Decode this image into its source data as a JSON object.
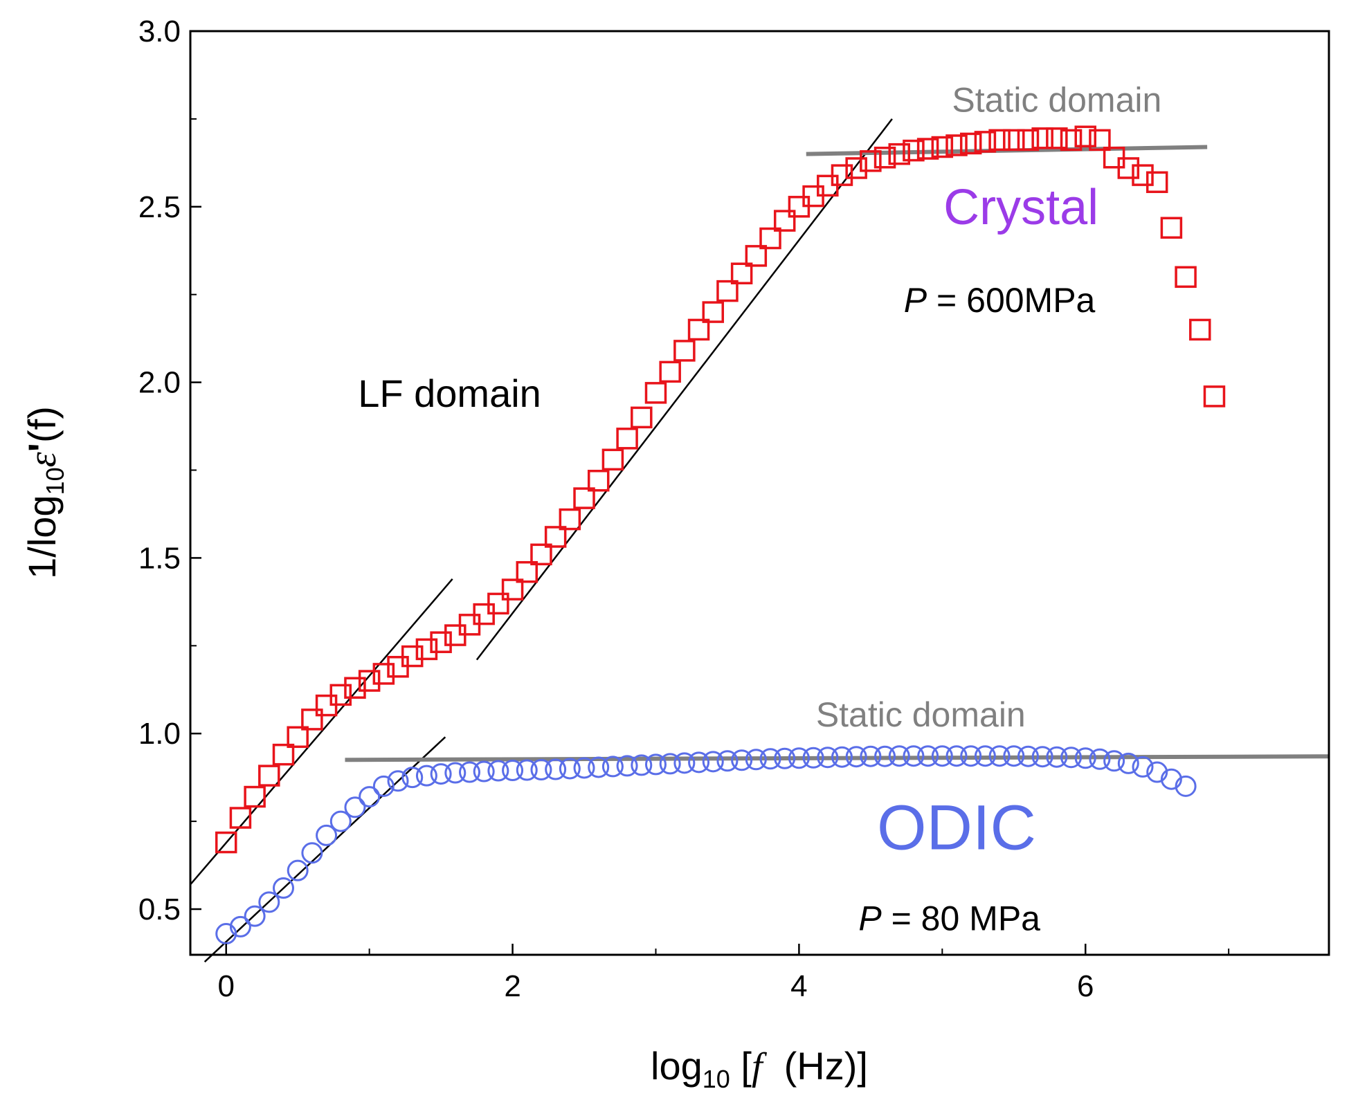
{
  "chart_data": {
    "type": "scatter",
    "xlabel": {
      "prefix": "log",
      "sub": "10",
      "bracket_open": " [",
      "var": "f",
      "unit": "  (Hz)]"
    },
    "ylabel": {
      "prefix": "1/log",
      "sub": "10",
      "var": "ε",
      "prime": "'",
      "arg": "(f)"
    },
    "xlim": [
      -0.25,
      7.7
    ],
    "ylim": [
      0.37,
      3.0
    ],
    "xticks": [
      0,
      2,
      4,
      6
    ],
    "xtick_labels": [
      "0",
      "2",
      "4",
      "6"
    ],
    "yticks": [
      0.5,
      1.0,
      1.5,
      2.0,
      2.5,
      3.0
    ],
    "ytick_labels": [
      "0.5",
      "1.0",
      "1.5",
      "2.0",
      "2.5",
      "3.0"
    ],
    "colors": {
      "crystal": "#e8141b",
      "odic": "#5a6ee8",
      "crystal_label": "#9b3be8",
      "static": "#808080",
      "fit": "#000000"
    },
    "series": [
      {
        "name": "Crystal",
        "marker": "square",
        "points": [
          [
            0.0,
            0.69
          ],
          [
            0.1,
            0.76
          ],
          [
            0.2,
            0.82
          ],
          [
            0.3,
            0.88
          ],
          [
            0.4,
            0.94
          ],
          [
            0.5,
            0.99
          ],
          [
            0.6,
            1.04
          ],
          [
            0.7,
            1.08
          ],
          [
            0.8,
            1.11
          ],
          [
            0.9,
            1.13
          ],
          [
            1.0,
            1.15
          ],
          [
            1.1,
            1.17
          ],
          [
            1.2,
            1.19
          ],
          [
            1.3,
            1.22
          ],
          [
            1.4,
            1.24
          ],
          [
            1.5,
            1.26
          ],
          [
            1.6,
            1.28
          ],
          [
            1.7,
            1.31
          ],
          [
            1.8,
            1.34
          ],
          [
            1.9,
            1.37
          ],
          [
            2.0,
            1.41
          ],
          [
            2.1,
            1.46
          ],
          [
            2.2,
            1.51
          ],
          [
            2.3,
            1.56
          ],
          [
            2.4,
            1.61
          ],
          [
            2.5,
            1.67
          ],
          [
            2.6,
            1.72
          ],
          [
            2.7,
            1.78
          ],
          [
            2.8,
            1.84
          ],
          [
            2.9,
            1.9
          ],
          [
            3.0,
            1.97
          ],
          [
            3.1,
            2.03
          ],
          [
            3.2,
            2.09
          ],
          [
            3.3,
            2.15
          ],
          [
            3.4,
            2.2
          ],
          [
            3.5,
            2.26
          ],
          [
            3.6,
            2.31
          ],
          [
            3.7,
            2.36
          ],
          [
            3.8,
            2.41
          ],
          [
            3.9,
            2.46
          ],
          [
            4.0,
            2.5
          ],
          [
            4.1,
            2.53
          ],
          [
            4.2,
            2.56
          ],
          [
            4.3,
            2.59
          ],
          [
            4.4,
            2.61
          ],
          [
            4.5,
            2.63
          ],
          [
            4.6,
            2.64
          ],
          [
            4.7,
            2.65
          ],
          [
            4.8,
            2.66
          ],
          [
            4.9,
            2.665
          ],
          [
            5.0,
            2.67
          ],
          [
            5.1,
            2.675
          ],
          [
            5.2,
            2.68
          ],
          [
            5.3,
            2.685
          ],
          [
            5.4,
            2.69
          ],
          [
            5.5,
            2.69
          ],
          [
            5.6,
            2.69
          ],
          [
            5.7,
            2.695
          ],
          [
            5.8,
            2.695
          ],
          [
            5.9,
            2.69
          ],
          [
            6.0,
            2.7
          ],
          [
            6.1,
            2.69
          ],
          [
            6.2,
            2.64
          ],
          [
            6.3,
            2.61
          ],
          [
            6.4,
            2.59
          ],
          [
            6.5,
            2.57
          ],
          [
            6.6,
            2.44
          ],
          [
            6.7,
            2.3
          ],
          [
            6.8,
            2.15
          ],
          [
            6.9,
            1.96
          ]
        ]
      },
      {
        "name": "ODIC",
        "marker": "circle",
        "points": [
          [
            0.0,
            0.43
          ],
          [
            0.1,
            0.45
          ],
          [
            0.2,
            0.48
          ],
          [
            0.3,
            0.52
          ],
          [
            0.4,
            0.56
          ],
          [
            0.5,
            0.61
          ],
          [
            0.6,
            0.66
          ],
          [
            0.7,
            0.71
          ],
          [
            0.8,
            0.75
          ],
          [
            0.9,
            0.79
          ],
          [
            1.0,
            0.82
          ],
          [
            1.1,
            0.85
          ],
          [
            1.2,
            0.865
          ],
          [
            1.3,
            0.875
          ],
          [
            1.4,
            0.88
          ],
          [
            1.5,
            0.885
          ],
          [
            1.6,
            0.888
          ],
          [
            1.7,
            0.89
          ],
          [
            1.8,
            0.892
          ],
          [
            1.9,
            0.894
          ],
          [
            2.0,
            0.895
          ],
          [
            2.1,
            0.896
          ],
          [
            2.2,
            0.897
          ],
          [
            2.3,
            0.898
          ],
          [
            2.4,
            0.9
          ],
          [
            2.5,
            0.902
          ],
          [
            2.6,
            0.904
          ],
          [
            2.7,
            0.906
          ],
          [
            2.8,
            0.908
          ],
          [
            2.9,
            0.91
          ],
          [
            3.0,
            0.912
          ],
          [
            3.1,
            0.914
          ],
          [
            3.2,
            0.916
          ],
          [
            3.3,
            0.918
          ],
          [
            3.4,
            0.92
          ],
          [
            3.5,
            0.922
          ],
          [
            3.6,
            0.924
          ],
          [
            3.7,
            0.926
          ],
          [
            3.8,
            0.928
          ],
          [
            3.9,
            0.929
          ],
          [
            4.0,
            0.93
          ],
          [
            4.1,
            0.931
          ],
          [
            4.2,
            0.932
          ],
          [
            4.3,
            0.933
          ],
          [
            4.4,
            0.934
          ],
          [
            4.5,
            0.935
          ],
          [
            4.6,
            0.935
          ],
          [
            4.7,
            0.936
          ],
          [
            4.8,
            0.936
          ],
          [
            4.9,
            0.936
          ],
          [
            5.0,
            0.936
          ],
          [
            5.1,
            0.936
          ],
          [
            5.2,
            0.936
          ],
          [
            5.3,
            0.936
          ],
          [
            5.4,
            0.936
          ],
          [
            5.5,
            0.936
          ],
          [
            5.6,
            0.935
          ],
          [
            5.7,
            0.934
          ],
          [
            5.8,
            0.933
          ],
          [
            5.9,
            0.932
          ],
          [
            6.0,
            0.93
          ],
          [
            6.1,
            0.927
          ],
          [
            6.2,
            0.922
          ],
          [
            6.3,
            0.915
          ],
          [
            6.4,
            0.905
          ],
          [
            6.5,
            0.89
          ],
          [
            6.6,
            0.87
          ],
          [
            6.7,
            0.85
          ]
        ]
      }
    ],
    "fit_lines": [
      {
        "name": "crystal-lf-fit-low",
        "from": [
          -0.25,
          0.57
        ],
        "to": [
          1.58,
          1.44
        ]
      },
      {
        "name": "crystal-lf-fit-high",
        "from": [
          1.75,
          1.21
        ],
        "to": [
          4.65,
          2.75
        ]
      },
      {
        "name": "odic-lf-fit",
        "from": [
          -0.15,
          0.35
        ],
        "to": [
          1.53,
          0.99
        ]
      }
    ],
    "static_lines": [
      {
        "name": "crystal-static-line",
        "from": [
          4.05,
          2.65
        ],
        "to": [
          6.85,
          2.67
        ]
      },
      {
        "name": "odic-static-line",
        "from": [
          0.83,
          0.925
        ],
        "to": [
          7.7,
          0.935
        ]
      }
    ],
    "annotations": [
      {
        "name": "static-domain-label-crystal",
        "text": "Static domain",
        "at": [
          5.8,
          2.77
        ],
        "color": "static",
        "size": 50
      },
      {
        "name": "crystal-label",
        "text": "Crystal",
        "at": [
          5.55,
          2.45
        ],
        "color": "crystal_label",
        "size": 72
      },
      {
        "name": "static-domain-label-odic",
        "text": "Static domain",
        "at": [
          4.85,
          1.02
        ],
        "color": "static",
        "size": 50
      },
      {
        "name": "lf-domain-label",
        "text": "LF domain",
        "at": [
          1.56,
          1.93
        ],
        "color": "fit",
        "size": 56
      },
      {
        "name": "odic-label",
        "text": "ODIC",
        "at": [
          5.1,
          0.67
        ],
        "color": "odic",
        "size": 92
      }
    ],
    "pressure_labels": [
      {
        "name": "crystal-pressure-label",
        "var": "P",
        "text": " = 600MPa",
        "at": [
          5.4,
          2.2
        ]
      },
      {
        "name": "odic-pressure-label",
        "var": "P",
        "text": " = 80 MPa",
        "at": [
          5.05,
          0.44
        ]
      }
    ]
  }
}
